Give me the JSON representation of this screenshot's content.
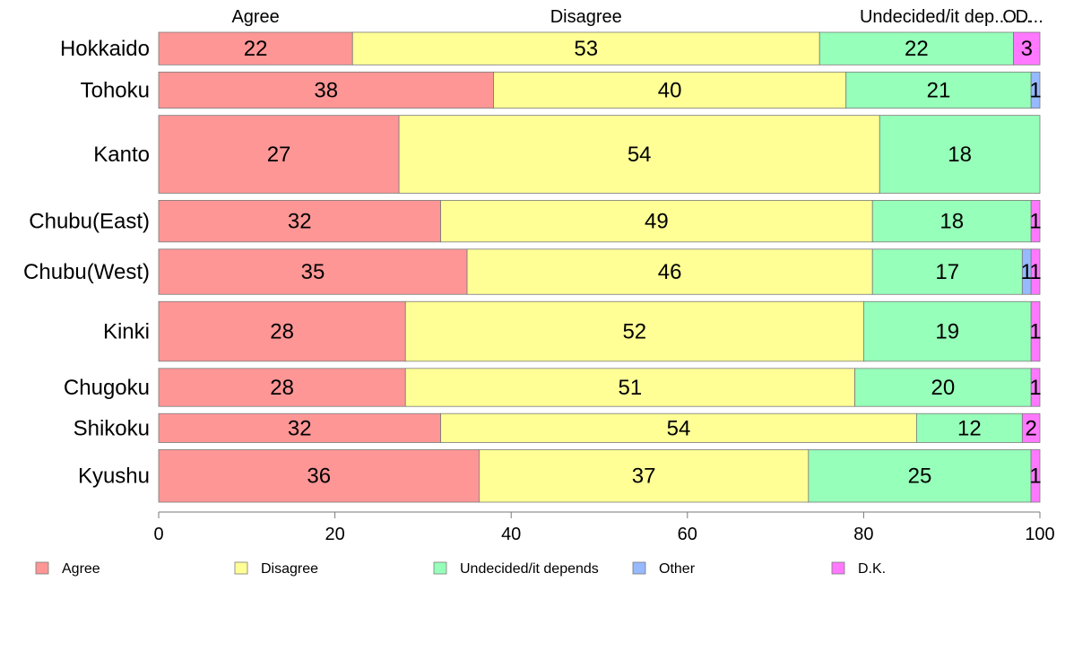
{
  "chart_data": {
    "type": "bar",
    "orientation": "horizontal",
    "stacked": true,
    "categories": [
      "Hokkaido",
      "Tohoku",
      "Kanto",
      "Chubu(East)",
      "Chubu(West)",
      "Kinki",
      "Chugoku",
      "Shikoku",
      "Kyushu"
    ],
    "series": [
      {
        "name": "Agree",
        "color": "#FF9696",
        "values": [
          22,
          38,
          27,
          32,
          35,
          28,
          28,
          32,
          36
        ]
      },
      {
        "name": "Disagree",
        "color": "#FFFF96",
        "values": [
          53,
          40,
          54,
          49,
          46,
          52,
          51,
          54,
          37
        ]
      },
      {
        "name": "Undecided/it depends",
        "color": "#96FFB9",
        "values": [
          22,
          21,
          18,
          18,
          17,
          19,
          20,
          12,
          25
        ]
      },
      {
        "name": "Other",
        "color": "#96B9FF",
        "values": [
          0,
          1,
          0,
          0,
          1,
          0,
          0,
          0,
          0
        ]
      },
      {
        "name": "D.K.",
        "color": "#FF78FF",
        "values": [
          3,
          0,
          0,
          1,
          1,
          1,
          1,
          2,
          1
        ]
      }
    ],
    "data_labels": [
      [
        "22",
        "53",
        "22",
        "",
        "3"
      ],
      [
        "38",
        "40",
        "21",
        "1",
        ""
      ],
      [
        "27",
        "54",
        "18",
        "",
        ""
      ],
      [
        "32",
        "49",
        "18",
        "",
        "1"
      ],
      [
        "35",
        "46",
        "17",
        "1",
        "1"
      ],
      [
        "28",
        "52",
        "19",
        "",
        "1"
      ],
      [
        "28",
        "51",
        "20",
        "",
        "1"
      ],
      [
        "32",
        "54",
        "12",
        "",
        "2"
      ],
      [
        "36",
        "37",
        "25",
        "",
        "1"
      ]
    ],
    "relative_bar_widths": [
      36,
      40,
      86,
      46,
      50,
      66,
      42,
      32,
      58
    ],
    "top_labels": [
      "Agree",
      "Disagree",
      "Undecided/it dep...",
      "O...",
      "D..."
    ],
    "xlim": [
      0,
      100
    ],
    "xticks": [
      0,
      20,
      40,
      60,
      80,
      100
    ],
    "legend": [
      "Agree",
      "Disagree",
      "Undecided/it depends",
      "Other",
      "D.K."
    ],
    "legend_position": "bottom",
    "grid": false
  }
}
